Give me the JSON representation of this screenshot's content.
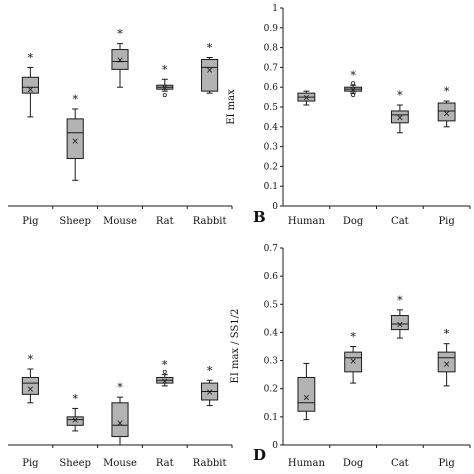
{
  "chart_data": [
    {
      "type": "box",
      "panel": "top-left",
      "letter": "",
      "ylabel": "",
      "categories": [
        "Pig",
        "Sheep",
        "Mouse",
        "Rat",
        "Rabbit"
      ],
      "ylim": [
        0,
        1
      ],
      "yticks": [],
      "boxes": [
        {
          "min": 0.45,
          "q1": 0.57,
          "median": 0.6,
          "q3": 0.65,
          "max": 0.7,
          "mean": 0.59,
          "outliers": [],
          "star": true
        },
        {
          "min": 0.13,
          "q1": 0.24,
          "median": 0.37,
          "q3": 0.44,
          "max": 0.49,
          "mean": 0.33,
          "outliers": [],
          "star": true
        },
        {
          "min": 0.6,
          "q1": 0.69,
          "median": 0.73,
          "q3": 0.79,
          "max": 0.82,
          "mean": 0.74,
          "outliers": [],
          "star": true
        },
        {
          "min": 0.58,
          "q1": 0.59,
          "median": 0.6,
          "q3": 0.61,
          "max": 0.64,
          "mean": 0.6,
          "outliers": [
            0.56
          ],
          "star": true
        },
        {
          "min": 0.57,
          "q1": 0.58,
          "median": 0.7,
          "q3": 0.74,
          "max": 0.75,
          "mean": 0.69,
          "outliers": [],
          "star": true
        }
      ]
    },
    {
      "type": "box",
      "panel": "top-right",
      "letter": "B",
      "ylabel": "EI max",
      "categories": [
        "Human",
        "Dog",
        "Cat",
        "Pig"
      ],
      "ylim": [
        0,
        1
      ],
      "yticks": [
        "0",
        "0.1",
        "0.2",
        "0.3",
        "0.4",
        "0.5",
        "0.6",
        "0.7",
        "0.8",
        "0.9",
        "1"
      ],
      "boxes": [
        {
          "min": 0.51,
          "q1": 0.53,
          "median": 0.55,
          "q3": 0.57,
          "max": 0.58,
          "mean": 0.55,
          "outliers": [],
          "star": false
        },
        {
          "min": 0.57,
          "q1": 0.58,
          "median": 0.59,
          "q3": 0.6,
          "max": 0.61,
          "mean": 0.59,
          "outliers": [
            0.56,
            0.62
          ],
          "star": true
        },
        {
          "min": 0.37,
          "q1": 0.42,
          "median": 0.46,
          "q3": 0.48,
          "max": 0.51,
          "mean": 0.45,
          "outliers": [],
          "star": true
        },
        {
          "min": 0.4,
          "q1": 0.43,
          "median": 0.48,
          "q3": 0.52,
          "max": 0.53,
          "mean": 0.47,
          "outliers": [],
          "star": true
        }
      ]
    },
    {
      "type": "box",
      "panel": "bottom-left",
      "letter": "",
      "ylabel": "",
      "categories": [
        "Pig",
        "Sheep",
        "Mouse",
        "Rat",
        "Rabbit"
      ],
      "ylim": [
        0,
        0.7
      ],
      "yticks": [],
      "boxes": [
        {
          "min": 0.15,
          "q1": 0.18,
          "median": 0.22,
          "q3": 0.24,
          "max": 0.27,
          "mean": 0.2,
          "outliers": [],
          "star": true
        },
        {
          "min": 0.05,
          "q1": 0.07,
          "median": 0.09,
          "q3": 0.1,
          "max": 0.13,
          "mean": 0.09,
          "outliers": [],
          "star": true
        },
        {
          "min": 0.0,
          "q1": 0.03,
          "median": 0.07,
          "q3": 0.15,
          "max": 0.17,
          "mean": 0.08,
          "outliers": [],
          "star": true
        },
        {
          "min": 0.21,
          "q1": 0.22,
          "median": 0.23,
          "q3": 0.24,
          "max": 0.25,
          "mean": 0.23,
          "outliers": [
            0.26
          ],
          "star": true
        },
        {
          "min": 0.14,
          "q1": 0.16,
          "median": 0.19,
          "q3": 0.22,
          "max": 0.23,
          "mean": 0.19,
          "outliers": [],
          "star": true
        }
      ]
    },
    {
      "type": "box",
      "panel": "bottom-right",
      "letter": "D",
      "ylabel": "EI max / SS1/2",
      "categories": [
        "Human",
        "Dog",
        "Cat",
        "Pig"
      ],
      "ylim": [
        0,
        0.7
      ],
      "yticks": [
        "0",
        "0.1",
        "0.2",
        "0.3",
        "0.4",
        "0.5",
        "0.6",
        "0.7"
      ],
      "boxes": [
        {
          "min": 0.09,
          "q1": 0.12,
          "median": 0.15,
          "q3": 0.24,
          "max": 0.29,
          "mean": 0.17,
          "outliers": [],
          "star": false
        },
        {
          "min": 0.22,
          "q1": 0.26,
          "median": 0.31,
          "q3": 0.33,
          "max": 0.35,
          "mean": 0.3,
          "outliers": [],
          "star": true
        },
        {
          "min": 0.38,
          "q1": 0.41,
          "median": 0.43,
          "q3": 0.46,
          "max": 0.48,
          "mean": 0.43,
          "outliers": [],
          "star": true
        },
        {
          "min": 0.21,
          "q1": 0.26,
          "median": 0.31,
          "q3": 0.33,
          "max": 0.36,
          "mean": 0.29,
          "outliers": [],
          "star": true
        }
      ]
    }
  ],
  "colors": {
    "box_fill": "#b3b3b3",
    "stroke": "#1a1a1a"
  },
  "symbols": {
    "star": "*",
    "mean": "×",
    "outlier": "◦"
  }
}
